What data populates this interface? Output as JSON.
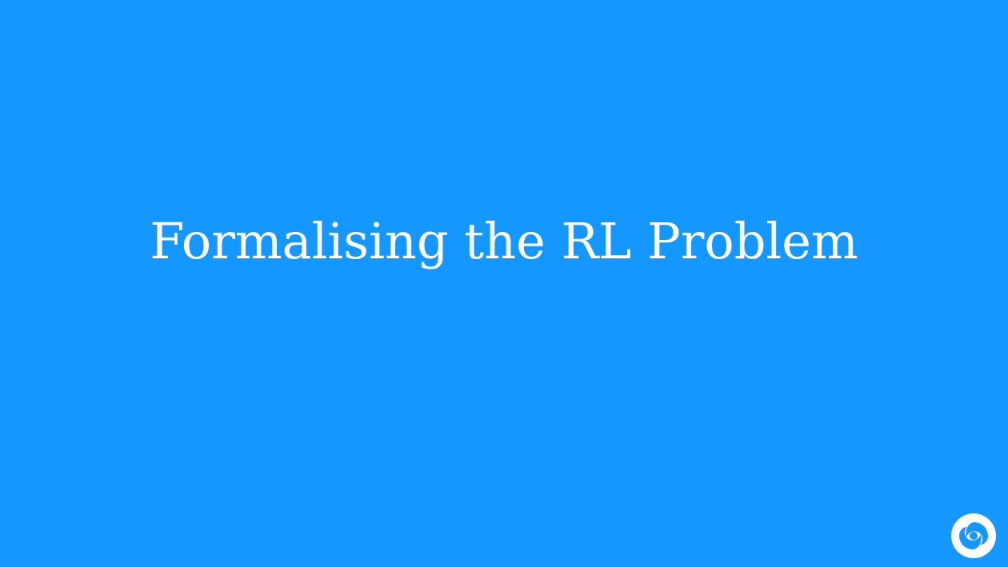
{
  "slide": {
    "title": "Formalising the RL Problem",
    "background_color": "#1497ff",
    "text_color": "#ffffff",
    "logo_icon": "swirl-logo-icon"
  }
}
